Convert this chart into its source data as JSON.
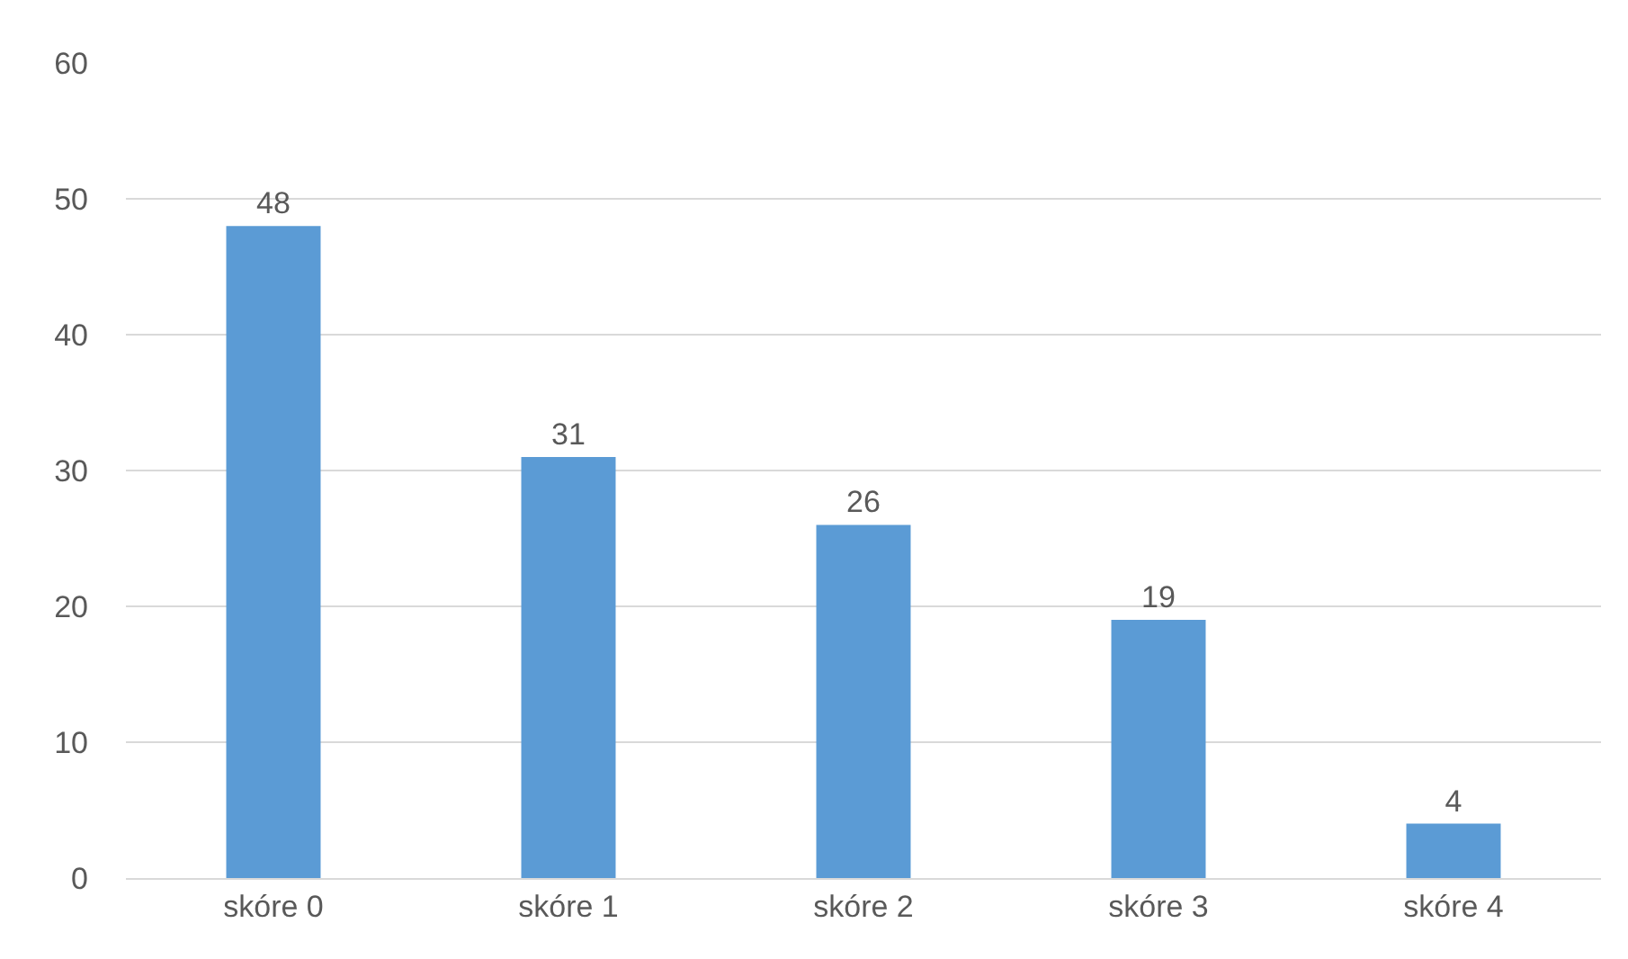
{
  "chart_data": {
    "type": "bar",
    "categories": [
      "skóre 0",
      "skóre 1",
      "skóre 2",
      "skóre 3",
      "skóre 4"
    ],
    "values": [
      48,
      31,
      26,
      19,
      4
    ],
    "color": "#5b9bd5",
    "ylim": [
      0,
      60
    ],
    "yticks": [
      0,
      10,
      20,
      30,
      40,
      50,
      60
    ],
    "grid": "y",
    "data_labels": true,
    "legend": false
  }
}
